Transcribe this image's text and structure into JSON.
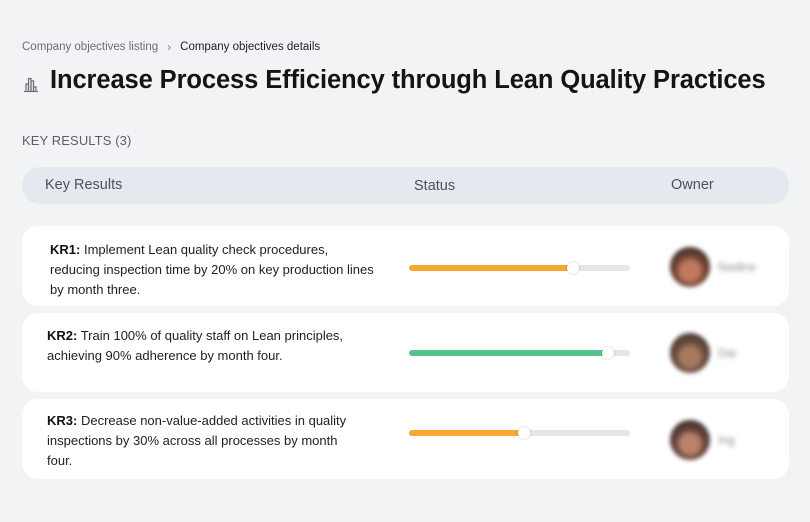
{
  "breadcrumb": {
    "parent": "Company objectives listing",
    "separator": "›",
    "current": "Company objectives details"
  },
  "objective": {
    "icon": "building-chart-icon",
    "title": "Increase Process Efficiency through Lean Quality Practices"
  },
  "key_results_section": {
    "label": "KEY RESULTS (3)",
    "columns": [
      "Key Results",
      "Status",
      "Owner"
    ]
  },
  "key_results": [
    {
      "code": "KR1:",
      "text": " Implement Lean quality check procedures, reducing inspection time by 20% on key production lines by month three.",
      "progress": 74,
      "progress_color": "#f8a634",
      "owner": {
        "name": "Nadine",
        "avatar_colors": [
          "#3a2a26",
          "#c07a5e",
          "#7c4a3a"
        ]
      }
    },
    {
      "code": "KR2:",
      "text": " Train 100% of quality staff on Lean principles, achieving 90% adherence by month four.",
      "progress": 90,
      "progress_color": "#55c48c",
      "owner": {
        "name": "Dai",
        "avatar_colors": [
          "#4a3830",
          "#a77a60",
          "#6b5042"
        ]
      }
    },
    {
      "code": "KR3:",
      "text": " Decrease non-value-added activities in quality inspections by 30% across all processes by month four.",
      "progress": 52,
      "progress_color": "#f8a634",
      "owner": {
        "name": "Ing",
        "avatar_colors": [
          "#3b2e2c",
          "#b9826c",
          "#6e463b"
        ]
      }
    }
  ],
  "colors": {
    "background": "#f2f3f5",
    "header_bg": "#e4e9f0",
    "card_bg": "#ffffff",
    "track": "#e6e6e7"
  }
}
